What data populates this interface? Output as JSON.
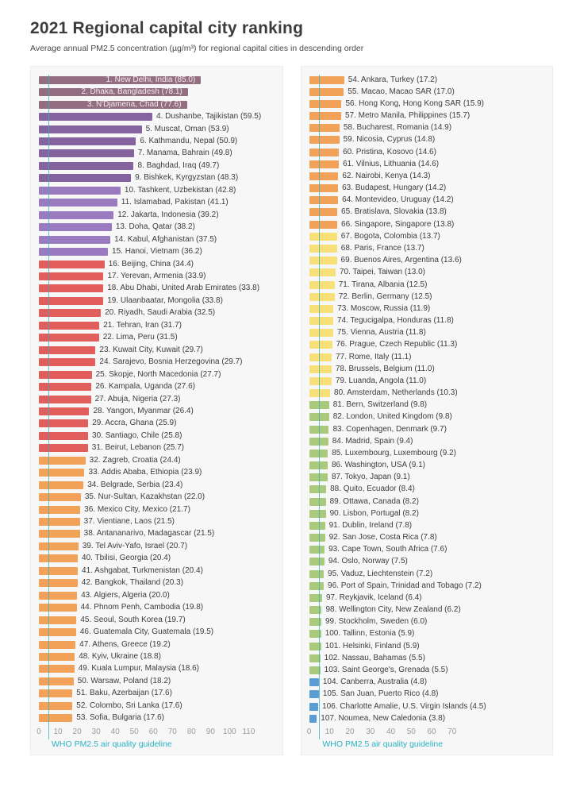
{
  "chart_data": {
    "type": "bar",
    "orientation": "horizontal",
    "title": "2021 Regional capital city ranking",
    "subtitle": "Average annual PM2.5 concentration (µg/m³) for regional capital cities in descending order",
    "unit": "µg/m³",
    "grid": false,
    "legend": "none",
    "guideline": {
      "label": "WHO PM2.5 air quality guideline",
      "value": 5,
      "color": "#2ab3c3"
    },
    "color_scale": [
      {
        "min": 70,
        "color": "#936e80"
      },
      {
        "min": 45,
        "color": "#84639f"
      },
      {
        "min": 35,
        "color": "#9a7bc0"
      },
      {
        "min": 25.5,
        "color": "#e15e5c"
      },
      {
        "min": 13.75,
        "color": "#f2a158"
      },
      {
        "min": 10,
        "color": "#f6e077"
      },
      {
        "min": 5,
        "color": "#aac97a"
      },
      {
        "min": 0,
        "color": "#5b9cd4"
      }
    ],
    "panels": [
      {
        "axis_max": 110,
        "axis_ticks": [
          0,
          10,
          20,
          30,
          40,
          50,
          60,
          70,
          80,
          90,
          100,
          110
        ],
        "items": [
          {
            "rank": 1,
            "name": "New Delhi, India",
            "value": 85.0
          },
          {
            "rank": 2,
            "name": "Dhaka, Bangladesh",
            "value": 78.1
          },
          {
            "rank": 3,
            "name": "N'Djamena, Chad",
            "value": 77.6
          },
          {
            "rank": 4,
            "name": "Dushanbe, Tajikistan",
            "value": 59.5
          },
          {
            "rank": 5,
            "name": "Muscat, Oman",
            "value": 53.9
          },
          {
            "rank": 6,
            "name": "Kathmandu, Nepal",
            "value": 50.9
          },
          {
            "rank": 7,
            "name": "Manama, Bahrain",
            "value": 49.8
          },
          {
            "rank": 8,
            "name": "Baghdad, Iraq",
            "value": 49.7
          },
          {
            "rank": 9,
            "name": "Bishkek, Kyrgyzstan",
            "value": 48.3
          },
          {
            "rank": 10,
            "name": "Tashkent, Uzbekistan",
            "value": 42.8
          },
          {
            "rank": 11,
            "name": "Islamabad, Pakistan",
            "value": 41.1
          },
          {
            "rank": 12,
            "name": "Jakarta, Indonesia",
            "value": 39.2
          },
          {
            "rank": 13,
            "name": "Doha, Qatar",
            "value": 38.2
          },
          {
            "rank": 14,
            "name": "Kabul, Afghanistan",
            "value": 37.5
          },
          {
            "rank": 15,
            "name": "Hanoi, Vietnam",
            "value": 36.2
          },
          {
            "rank": 16,
            "name": "Beijing, China",
            "value": 34.4
          },
          {
            "rank": 17,
            "name": "Yerevan, Armenia",
            "value": 33.9
          },
          {
            "rank": 18,
            "name": "Abu Dhabi, United Arab Emirates",
            "value": 33.8
          },
          {
            "rank": 19,
            "name": "Ulaanbaatar, Mongolia",
            "value": 33.8
          },
          {
            "rank": 20,
            "name": "Riyadh, Saudi Arabia",
            "value": 32.5
          },
          {
            "rank": 21,
            "name": "Tehran, Iran",
            "value": 31.7
          },
          {
            "rank": 22,
            "name": "Lima, Peru",
            "value": 31.5
          },
          {
            "rank": 23,
            "name": "Kuwait City, Kuwait",
            "value": 29.7
          },
          {
            "rank": 24,
            "name": "Sarajevo, Bosnia Herzegovina",
            "value": 29.7
          },
          {
            "rank": 25,
            "name": "Skopje, North Macedonia",
            "value": 27.7
          },
          {
            "rank": 26,
            "name": "Kampala, Uganda",
            "value": 27.6
          },
          {
            "rank": 27,
            "name": "Abuja, Nigeria",
            "value": 27.3
          },
          {
            "rank": 28,
            "name": "Yangon, Myanmar",
            "value": 26.4
          },
          {
            "rank": 29,
            "name": "Accra, Ghana",
            "value": 25.9
          },
          {
            "rank": 30,
            "name": "Santiago, Chile",
            "value": 25.8
          },
          {
            "rank": 31,
            "name": "Beirut, Lebanon",
            "value": 25.7
          },
          {
            "rank": 32,
            "name": "Zagreb, Croatia",
            "value": 24.4
          },
          {
            "rank": 33,
            "name": "Addis Ababa, Ethiopia",
            "value": 23.9
          },
          {
            "rank": 34,
            "name": "Belgrade, Serbia",
            "value": 23.4
          },
          {
            "rank": 35,
            "name": "Nur-Sultan, Kazakhstan",
            "value": 22.0
          },
          {
            "rank": 36,
            "name": "Mexico City, Mexico",
            "value": 21.7
          },
          {
            "rank": 37,
            "name": "Vientiane, Laos",
            "value": 21.5
          },
          {
            "rank": 38,
            "name": "Antananarivo, Madagascar",
            "value": 21.5
          },
          {
            "rank": 39,
            "name": "Tel Aviv-Yafo, Israel",
            "value": 20.7
          },
          {
            "rank": 40,
            "name": "Tbilisi, Georgia",
            "value": 20.4
          },
          {
            "rank": 41,
            "name": "Ashgabat, Turkmenistan",
            "value": 20.4
          },
          {
            "rank": 42,
            "name": "Bangkok, Thailand",
            "value": 20.3
          },
          {
            "rank": 43,
            "name": "Algiers, Algeria",
            "value": 20.0
          },
          {
            "rank": 44,
            "name": "Phnom Penh, Cambodia",
            "value": 19.8
          },
          {
            "rank": 45,
            "name": "Seoul, South Korea",
            "value": 19.7
          },
          {
            "rank": 46,
            "name": "Guatemala City, Guatemala",
            "value": 19.5
          },
          {
            "rank": 47,
            "name": "Athens, Greece",
            "value": 19.2
          },
          {
            "rank": 48,
            "name": "Kyiv, Ukraine",
            "value": 18.8
          },
          {
            "rank": 49,
            "name": "Kuala Lumpur, Malaysia",
            "value": 18.6
          },
          {
            "rank": 50,
            "name": "Warsaw, Poland",
            "value": 18.2
          },
          {
            "rank": 51,
            "name": "Baku, Azerbaijan",
            "value": 17.6
          },
          {
            "rank": 52,
            "name": "Colombo, Sri Lanka",
            "value": 17.6
          },
          {
            "rank": 53,
            "name": "Sofia, Bulgaria",
            "value": 17.6
          }
        ]
      },
      {
        "axis_max": 70,
        "axis_ticks": [
          0,
          10,
          20,
          30,
          40,
          50,
          60,
          70
        ],
        "items": [
          {
            "rank": 54,
            "name": "Ankara, Turkey",
            "value": 17.2
          },
          {
            "rank": 55,
            "name": "Macao, Macao SAR",
            "value": 17.0
          },
          {
            "rank": 56,
            "name": "Hong Kong, Hong Kong SAR",
            "value": 15.9
          },
          {
            "rank": 57,
            "name": "Metro Manila, Philippines",
            "value": 15.7
          },
          {
            "rank": 58,
            "name": "Bucharest, Romania",
            "value": 14.9
          },
          {
            "rank": 59,
            "name": "Nicosia, Cyprus",
            "value": 14.8
          },
          {
            "rank": 60,
            "name": "Pristina, Kosovo",
            "value": 14.6
          },
          {
            "rank": 61,
            "name": "Vilnius, Lithuania",
            "value": 14.6
          },
          {
            "rank": 62,
            "name": "Nairobi, Kenya",
            "value": 14.3
          },
          {
            "rank": 63,
            "name": "Budapest, Hungary",
            "value": 14.2
          },
          {
            "rank": 64,
            "name": "Montevideo, Uruguay",
            "value": 14.2
          },
          {
            "rank": 65,
            "name": "Bratislava, Slovakia",
            "value": 13.8
          },
          {
            "rank": 66,
            "name": "Singapore, Singapore",
            "value": 13.8
          },
          {
            "rank": 67,
            "name": "Bogota, Colombia",
            "value": 13.7
          },
          {
            "rank": 68,
            "name": "Paris, France",
            "value": 13.7
          },
          {
            "rank": 69,
            "name": "Buenos Aires, Argentina",
            "value": 13.6
          },
          {
            "rank": 70,
            "name": "Taipei, Taiwan",
            "value": 13.0
          },
          {
            "rank": 71,
            "name": "Tirana, Albania",
            "value": 12.5
          },
          {
            "rank": 72,
            "name": "Berlin, Germany",
            "value": 12.5
          },
          {
            "rank": 73,
            "name": "Moscow, Russia",
            "value": 11.9
          },
          {
            "rank": 74,
            "name": "Tegucigalpa, Honduras",
            "value": 11.8
          },
          {
            "rank": 75,
            "name": "Vienna, Austria",
            "value": 11.8
          },
          {
            "rank": 76,
            "name": "Prague, Czech Republic",
            "value": 11.3
          },
          {
            "rank": 77,
            "name": "Rome, Italy",
            "value": 11.1
          },
          {
            "rank": 78,
            "name": "Brussels, Belgium",
            "value": 11.0
          },
          {
            "rank": 79,
            "name": "Luanda, Angola",
            "value": 11.0
          },
          {
            "rank": 80,
            "name": "Amsterdam, Netherlands",
            "value": 10.3
          },
          {
            "rank": 81,
            "name": "Bern, Switzerland",
            "value": 9.8
          },
          {
            "rank": 82,
            "name": "London, United Kingdom",
            "value": 9.8
          },
          {
            "rank": 83,
            "name": "Copenhagen, Denmark",
            "value": 9.7
          },
          {
            "rank": 84,
            "name": "Madrid, Spain",
            "value": 9.4
          },
          {
            "rank": 85,
            "name": "Luxembourg, Luxembourg",
            "value": 9.2
          },
          {
            "rank": 86,
            "name": "Washington, USA",
            "value": 9.1
          },
          {
            "rank": 87,
            "name": "Tokyo, Japan",
            "value": 9.1
          },
          {
            "rank": 88,
            "name": "Quito, Ecuador",
            "value": 8.4
          },
          {
            "rank": 89,
            "name": "Ottawa, Canada",
            "value": 8.2
          },
          {
            "rank": 90,
            "name": "Lisbon, Portugal",
            "value": 8.2
          },
          {
            "rank": 91,
            "name": "Dublin, Ireland",
            "value": 7.8
          },
          {
            "rank": 92,
            "name": "San Jose, Costa Rica",
            "value": 7.8
          },
          {
            "rank": 93,
            "name": "Cape Town, South Africa",
            "value": 7.6
          },
          {
            "rank": 94,
            "name": "Oslo, Norway",
            "value": 7.5
          },
          {
            "rank": 95,
            "name": "Vaduz, Liechtenstein",
            "value": 7.2
          },
          {
            "rank": 96,
            "name": "Port of Spain, Trinidad and Tobago",
            "value": 7.2
          },
          {
            "rank": 97,
            "name": "Reykjavik, Iceland",
            "value": 6.4
          },
          {
            "rank": 98,
            "name": "Wellington City, New Zealand",
            "value": 6.2
          },
          {
            "rank": 99,
            "name": "Stockholm, Sweden",
            "value": 6.0
          },
          {
            "rank": 100,
            "name": "Tallinn, Estonia",
            "value": 5.9
          },
          {
            "rank": 101,
            "name": "Helsinki, Finland",
            "value": 5.9
          },
          {
            "rank": 102,
            "name": "Nassau, Bahamas",
            "value": 5.5
          },
          {
            "rank": 103,
            "name": "Saint George's, Grenada",
            "value": 5.5
          },
          {
            "rank": 104,
            "name": "Canberra, Australia",
            "value": 4.8
          },
          {
            "rank": 105,
            "name": "San Juan, Puerto Rico",
            "value": 4.8
          },
          {
            "rank": 106,
            "name": "Charlotte Amalie, U.S. Virgin Islands",
            "value": 4.5
          },
          {
            "rank": 107,
            "name": "Noumea, New Caledonia",
            "value": 3.8
          }
        ]
      }
    ]
  }
}
